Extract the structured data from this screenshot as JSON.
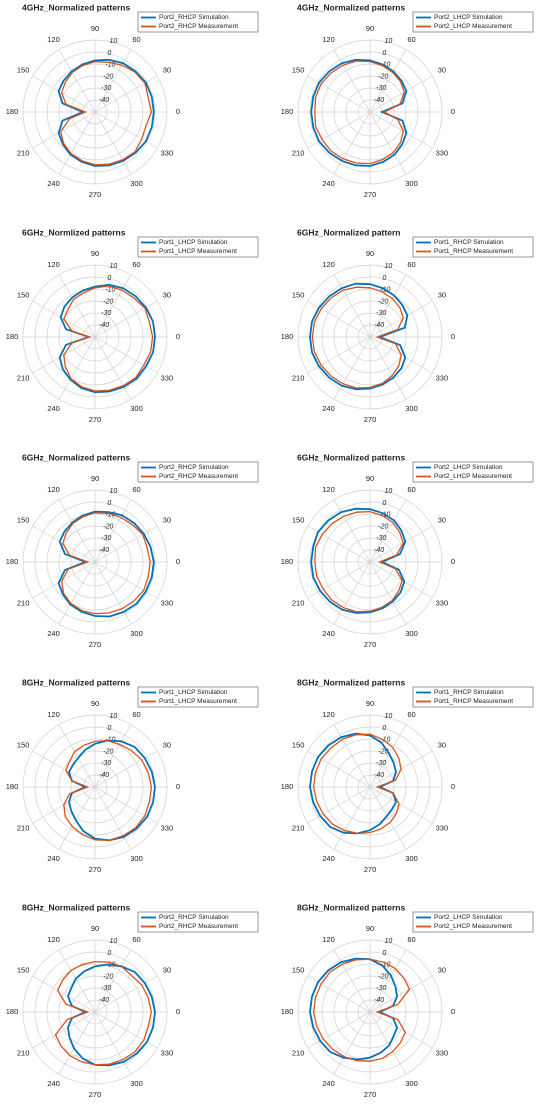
{
  "chart_data": [
    {
      "type": "polar",
      "title": "4GHz_Normalized patterns",
      "theta": [
        0,
        15,
        30,
        45,
        60,
        75,
        90,
        105,
        120,
        135,
        150,
        165,
        180,
        195,
        210,
        225,
        240,
        255,
        270,
        285,
        300,
        315,
        330,
        345
      ],
      "rlim": [
        -50,
        10
      ],
      "rticks": [
        10,
        0,
        -10,
        -20,
        -30,
        -40
      ],
      "thetaticks": [
        0,
        30,
        60,
        90,
        120,
        150,
        180,
        210,
        240,
        270,
        300,
        330
      ],
      "grid": true,
      "series": [
        {
          "name": "Port2_RHCP Simulation",
          "color": "#0072bd",
          "values": [
            -1,
            -1,
            -1,
            -2,
            -3,
            -5,
            -7,
            -9,
            -11,
            -13,
            -15,
            -22,
            -40,
            -22,
            -15,
            -12,
            -9,
            -7,
            -5,
            -4,
            -3,
            -2,
            -1,
            -1
          ]
        },
        {
          "name": "Port2_RHCP Measurement",
          "color": "#d95319",
          "values": [
            -3,
            -4,
            -2,
            -3,
            -5,
            -7,
            -8,
            -10,
            -12,
            -15,
            -18,
            -25,
            -42,
            -28,
            -17,
            -13,
            -10,
            -8,
            -6,
            -5,
            -4,
            -3,
            -5,
            -6
          ]
        }
      ]
    },
    {
      "type": "polar",
      "title": "4GHz_Normalized patterns",
      "theta": [
        0,
        15,
        30,
        45,
        60,
        75,
        90,
        105,
        120,
        135,
        150,
        165,
        180,
        195,
        210,
        225,
        240,
        255,
        270,
        285,
        300,
        315,
        330,
        345
      ],
      "rlim": [
        -50,
        10
      ],
      "rticks": [
        10,
        0,
        -10,
        -20,
        -30,
        -40
      ],
      "thetaticks": [
        0,
        30,
        60,
        90,
        120,
        150,
        180,
        210,
        240,
        270,
        300,
        330
      ],
      "grid": true,
      "series": [
        {
          "name": "Port2_LHCP Simulation",
          "color": "#0072bd",
          "values": [
            -40,
            -22,
            -15,
            -13,
            -11,
            -9,
            -7,
            -5,
            -3,
            -2,
            -1,
            -1,
            -1,
            -1,
            -1,
            -2,
            -3,
            -4,
            -5,
            -7,
            -9,
            -12,
            -15,
            -22
          ]
        },
        {
          "name": "Port2_LHCP Measurement",
          "color": "#d95319",
          "values": [
            -38,
            -24,
            -17,
            -14,
            -12,
            -10,
            -8,
            -6,
            -5,
            -4,
            -3,
            -3,
            -4,
            -3,
            -4,
            -4,
            -5,
            -6,
            -7,
            -9,
            -11,
            -14,
            -18,
            -26
          ]
        }
      ]
    },
    {
      "type": "polar",
      "title": "6GHz_Normlized patterns",
      "theta": [
        0,
        15,
        30,
        45,
        60,
        75,
        90,
        105,
        120,
        135,
        150,
        165,
        180,
        195,
        210,
        225,
        240,
        255,
        270,
        285,
        300,
        315,
        330,
        345
      ],
      "rlim": [
        -50,
        10
      ],
      "rticks": [
        10,
        0,
        -10,
        -20,
        -30,
        -40
      ],
      "thetaticks": [
        0,
        30,
        60,
        90,
        120,
        150,
        180,
        210,
        240,
        270,
        300,
        330
      ],
      "grid": true,
      "series": [
        {
          "name": "Port1_LHCP Simulation",
          "color": "#0072bd",
          "values": [
            0,
            0,
            -1,
            -2,
            -3,
            -5,
            -8,
            -10,
            -12,
            -14,
            -17,
            -25,
            -45,
            -25,
            -16,
            -12,
            -9,
            -6,
            -4,
            -3,
            -2,
            -1,
            -1,
            0
          ]
        },
        {
          "name": "Port1_LHCP Measurement",
          "color": "#d95319",
          "values": [
            -2,
            -3,
            -2,
            -4,
            -5,
            -6,
            -9,
            -12,
            -14,
            -18,
            -20,
            -30,
            -45,
            -30,
            -20,
            -15,
            -10,
            -7,
            -5,
            -4,
            -3,
            -2,
            -3,
            -2
          ]
        }
      ]
    },
    {
      "type": "polar",
      "title": "6GHz_Normalized pattern",
      "theta": [
        0,
        15,
        30,
        45,
        60,
        75,
        90,
        105,
        120,
        135,
        150,
        165,
        180,
        195,
        210,
        225,
        240,
        255,
        270,
        285,
        300,
        315,
        330,
        345
      ],
      "rlim": [
        -50,
        10
      ],
      "rticks": [
        10,
        0,
        -10,
        -20,
        -30,
        -40
      ],
      "thetaticks": [
        0,
        30,
        60,
        90,
        120,
        150,
        180,
        210,
        240,
        270,
        300,
        330
      ],
      "grid": true,
      "series": [
        {
          "name": "Port1_RHCP Simulation",
          "color": "#0072bd",
          "values": [
            -42,
            -20,
            -14,
            -12,
            -10,
            -8,
            -6,
            -4,
            -3,
            -2,
            -1,
            0,
            0,
            0,
            -1,
            -2,
            -3,
            -5,
            -7,
            -9,
            -11,
            -13,
            -16,
            -24
          ]
        },
        {
          "name": "Port1_RHCP Measurement",
          "color": "#d95319",
          "values": [
            -44,
            -26,
            -18,
            -15,
            -13,
            -11,
            -9,
            -7,
            -5,
            -4,
            -3,
            -2,
            -2,
            -2,
            -3,
            -4,
            -5,
            -6,
            -8,
            -10,
            -13,
            -16,
            -20,
            -28
          ]
        }
      ]
    },
    {
      "type": "polar",
      "title": "6GHz_Normalized patterns",
      "theta": [
        0,
        15,
        30,
        45,
        60,
        75,
        90,
        105,
        120,
        135,
        150,
        165,
        180,
        195,
        210,
        225,
        240,
        255,
        270,
        285,
        300,
        315,
        330,
        345
      ],
      "rlim": [
        -50,
        10
      ],
      "rticks": [
        10,
        0,
        -10,
        -20,
        -30,
        -40
      ],
      "thetaticks": [
        0,
        30,
        60,
        90,
        120,
        150,
        180,
        210,
        240,
        270,
        300,
        330
      ],
      "grid": true,
      "series": [
        {
          "name": "Port2_RHCP Simulation",
          "color": "#0072bd",
          "values": [
            -1,
            -2,
            -3,
            -4,
            -5,
            -7,
            -8,
            -10,
            -12,
            -14,
            -16,
            -24,
            -42,
            -24,
            -15,
            -12,
            -9,
            -7,
            -5,
            -3,
            -2,
            -1,
            -1,
            -1
          ]
        },
        {
          "name": "Port2_RHCP Measurement",
          "color": "#d95319",
          "values": [
            -4,
            -5,
            -4,
            -6,
            -7,
            -8,
            -9,
            -11,
            -13,
            -16,
            -19,
            -28,
            -44,
            -27,
            -18,
            -13,
            -10,
            -8,
            -7,
            -6,
            -5,
            -4,
            -3,
            -4
          ]
        }
      ]
    },
    {
      "type": "polar",
      "title": "6GHz_Normalized patterns",
      "theta": [
        0,
        15,
        30,
        45,
        60,
        75,
        90,
        105,
        120,
        135,
        150,
        165,
        180,
        195,
        210,
        225,
        240,
        255,
        270,
        285,
        300,
        315,
        330,
        345
      ],
      "rlim": [
        -50,
        10
      ],
      "rticks": [
        10,
        0,
        -10,
        -20,
        -30,
        -40
      ],
      "thetaticks": [
        0,
        30,
        60,
        90,
        120,
        150,
        180,
        210,
        240,
        270,
        300,
        330
      ],
      "grid": true,
      "series": [
        {
          "name": "Port2_LHCP Simulation",
          "color": "#0072bd",
          "values": [
            -40,
            -24,
            -16,
            -13,
            -10,
            -8,
            -6,
            -4,
            -2,
            -1,
            0,
            -1,
            -1,
            -1,
            -2,
            -3,
            -4,
            -6,
            -8,
            -10,
            -12,
            -14,
            -17,
            -25
          ]
        },
        {
          "name": "Port2_LHCP Measurement",
          "color": "#d95319",
          "values": [
            -42,
            -27,
            -18,
            -15,
            -12,
            -10,
            -8,
            -7,
            -6,
            -5,
            -4,
            -3,
            -4,
            -4,
            -5,
            -5,
            -6,
            -7,
            -9,
            -11,
            -13,
            -16,
            -19,
            -28
          ]
        }
      ]
    },
    {
      "type": "polar",
      "title": "8GHz_Normalized patterns",
      "theta": [
        0,
        15,
        30,
        45,
        60,
        75,
        90,
        105,
        120,
        135,
        150,
        165,
        180,
        195,
        210,
        225,
        240,
        255,
        270,
        285,
        300,
        315,
        330,
        345
      ],
      "rlim": [
        -50,
        10
      ],
      "rticks": [
        10,
        0,
        -10,
        -20,
        -30,
        -40
      ],
      "thetaticks": [
        0,
        30,
        60,
        90,
        120,
        150,
        180,
        210,
        240,
        270,
        300,
        330
      ],
      "grid": true,
      "series": [
        {
          "name": "Port1_LHCP Simulation",
          "color": "#0072bd",
          "values": [
            0,
            -1,
            -2,
            -3,
            -6,
            -10,
            -14,
            -18,
            -22,
            -24,
            -25,
            -30,
            -42,
            -30,
            -25,
            -22,
            -18,
            -12,
            -7,
            -4,
            -2,
            -1,
            0,
            0
          ]
        },
        {
          "name": "Port1_LHCP Measurement",
          "color": "#d95319",
          "values": [
            -3,
            -4,
            -5,
            -7,
            -9,
            -10,
            -12,
            -14,
            -16,
            -20,
            -22,
            -30,
            -44,
            -28,
            -20,
            -15,
            -12,
            -9,
            -6,
            -4,
            -3,
            -2,
            -2,
            -3
          ]
        }
      ]
    },
    {
      "type": "polar",
      "title": "8GHz_Normalized patterns",
      "theta": [
        0,
        15,
        30,
        45,
        60,
        75,
        90,
        105,
        120,
        135,
        150,
        165,
        180,
        195,
        210,
        225,
        240,
        255,
        270,
        285,
        300,
        315,
        330,
        345
      ],
      "rlim": [
        -50,
        10
      ],
      "rticks": [
        10,
        0,
        -10,
        -20,
        -30,
        -40
      ],
      "thetaticks": [
        0,
        30,
        60,
        90,
        120,
        150,
        180,
        210,
        240,
        270,
        300,
        330
      ],
      "grid": true,
      "series": [
        {
          "name": "Port1_RHCP Simulation",
          "color": "#0072bd",
          "values": [
            -42,
            -30,
            -25,
            -22,
            -18,
            -12,
            -7,
            -4,
            -2,
            -1,
            0,
            0,
            0,
            -1,
            -2,
            -3,
            -6,
            -10,
            -14,
            -18,
            -22,
            -24,
            -25,
            -30
          ]
        },
        {
          "name": "Port1_RHCP Measurement",
          "color": "#d95319",
          "values": [
            -44,
            -28,
            -20,
            -16,
            -12,
            -9,
            -6,
            -5,
            -4,
            -4,
            -3,
            -3,
            -3,
            -4,
            -5,
            -6,
            -8,
            -10,
            -12,
            -14,
            -16,
            -19,
            -22,
            -30
          ]
        }
      ]
    },
    {
      "type": "polar",
      "title": "8GHz_Normalized patterns",
      "theta": [
        0,
        15,
        30,
        45,
        60,
        75,
        90,
        105,
        120,
        135,
        150,
        165,
        180,
        195,
        210,
        225,
        240,
        255,
        270,
        285,
        300,
        315,
        330,
        345
      ],
      "rlim": [
        -50,
        10
      ],
      "rticks": [
        10,
        0,
        -10,
        -20,
        -30,
        -40
      ],
      "thetaticks": [
        0,
        30,
        60,
        90,
        120,
        150,
        180,
        210,
        240,
        270,
        300,
        330
      ],
      "grid": true,
      "series": [
        {
          "name": "Port2_RHCP Simulation",
          "color": "#0072bd",
          "values": [
            0,
            -1,
            -2,
            -3,
            -6,
            -9,
            -12,
            -15,
            -18,
            -22,
            -24,
            -30,
            -42,
            -30,
            -24,
            -20,
            -15,
            -10,
            -6,
            -4,
            -2,
            -1,
            0,
            0
          ]
        },
        {
          "name": "Port2_RHCP Measurement",
          "color": "#d95319",
          "values": [
            -3,
            -4,
            -5,
            -7,
            -6,
            -7,
            -8,
            -9,
            -10,
            -12,
            -14,
            -25,
            -44,
            -26,
            -12,
            -10,
            -8,
            -7,
            -6,
            -5,
            -4,
            -3,
            -3,
            -4
          ]
        }
      ]
    },
    {
      "type": "polar",
      "title": "8GHz_Normalized patterns",
      "theta": [
        0,
        15,
        30,
        45,
        60,
        75,
        90,
        105,
        120,
        135,
        150,
        165,
        180,
        195,
        210,
        225,
        240,
        255,
        270,
        285,
        300,
        315,
        330,
        345
      ],
      "rlim": [
        -50,
        10
      ],
      "rticks": [
        10,
        0,
        -10,
        -20,
        -30,
        -40
      ],
      "thetaticks": [
        0,
        30,
        60,
        90,
        120,
        150,
        180,
        210,
        240,
        270,
        300,
        330
      ],
      "grid": true,
      "series": [
        {
          "name": "Port2_LHCP Simulation",
          "color": "#0072bd",
          "values": [
            -42,
            -30,
            -24,
            -20,
            -15,
            -10,
            -6,
            -4,
            -2,
            -1,
            0,
            0,
            0,
            -1,
            -2,
            -3,
            -6,
            -9,
            -12,
            -15,
            -18,
            -22,
            -24,
            -30
          ]
        },
        {
          "name": "Port2_LHCP Measurement",
          "color": "#d95319",
          "values": [
            -44,
            -26,
            -12,
            -10,
            -8,
            -7,
            -6,
            -5,
            -4,
            -3,
            -3,
            -3,
            -3,
            -4,
            -5,
            -6,
            -7,
            -8,
            -9,
            -10,
            -12,
            -14,
            -16,
            -26
          ]
        }
      ]
    }
  ]
}
